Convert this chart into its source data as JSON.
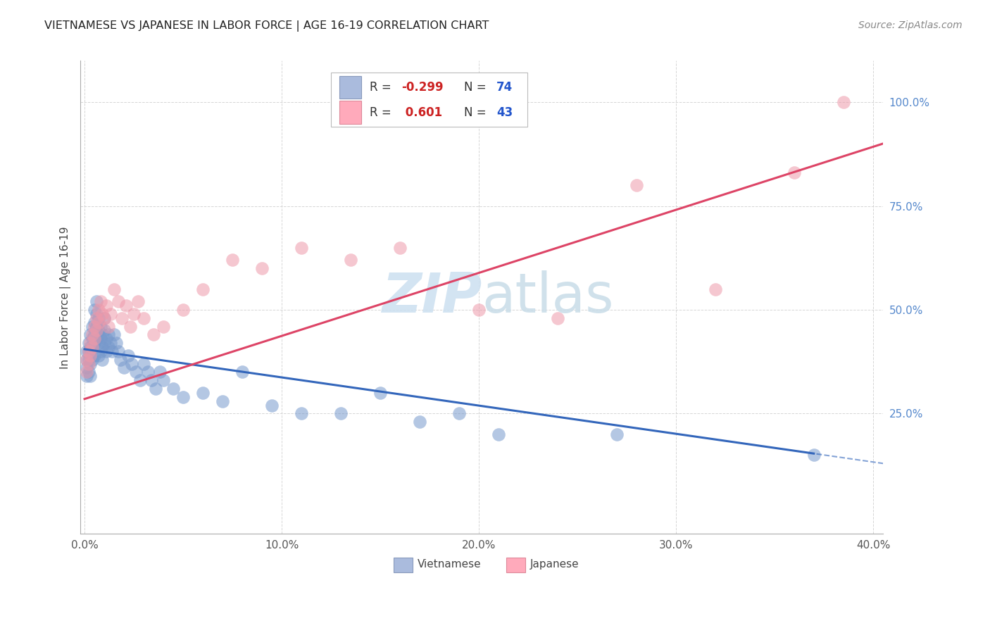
{
  "title": "VIETNAMESE VS JAPANESE IN LABOR FORCE | AGE 16-19 CORRELATION CHART",
  "source": "Source: ZipAtlas.com",
  "ylabel": "In Labor Force | Age 16-19",
  "xlim": [
    -0.002,
    0.405
  ],
  "ylim": [
    -0.04,
    1.1
  ],
  "xticks": [
    0.0,
    0.1,
    0.2,
    0.3,
    0.4
  ],
  "yticks_right": [
    0.25,
    0.5,
    0.75,
    1.0
  ],
  "background_color": "#ffffff",
  "grid_color": "#cccccc",
  "blue_dot_color": "#7799cc",
  "pink_dot_color": "#ee99aa",
  "blue_line_color": "#3366bb",
  "pink_line_color": "#dd4466",
  "watermark": "ZIPatlas",
  "watermark_color": "#ddeeff",
  "viet_x": [
    0.001,
    0.001,
    0.001,
    0.001,
    0.002,
    0.002,
    0.002,
    0.002,
    0.003,
    0.003,
    0.003,
    0.003,
    0.003,
    0.004,
    0.004,
    0.004,
    0.004,
    0.005,
    0.005,
    0.005,
    0.005,
    0.005,
    0.006,
    0.006,
    0.006,
    0.006,
    0.007,
    0.007,
    0.007,
    0.007,
    0.008,
    0.008,
    0.008,
    0.009,
    0.009,
    0.009,
    0.01,
    0.01,
    0.01,
    0.011,
    0.011,
    0.012,
    0.012,
    0.013,
    0.014,
    0.015,
    0.016,
    0.017,
    0.018,
    0.02,
    0.022,
    0.024,
    0.026,
    0.028,
    0.03,
    0.032,
    0.034,
    0.036,
    0.038,
    0.04,
    0.045,
    0.05,
    0.06,
    0.07,
    0.08,
    0.095,
    0.11,
    0.13,
    0.15,
    0.17,
    0.19,
    0.21,
    0.27,
    0.37
  ],
  "viet_y": [
    0.4,
    0.38,
    0.36,
    0.34,
    0.42,
    0.4,
    0.38,
    0.35,
    0.44,
    0.41,
    0.39,
    0.37,
    0.34,
    0.46,
    0.43,
    0.41,
    0.38,
    0.5,
    0.47,
    0.44,
    0.42,
    0.39,
    0.52,
    0.49,
    0.46,
    0.43,
    0.48,
    0.45,
    0.42,
    0.39,
    0.46,
    0.43,
    0.4,
    0.44,
    0.41,
    0.38,
    0.48,
    0.45,
    0.42,
    0.43,
    0.4,
    0.44,
    0.41,
    0.42,
    0.4,
    0.44,
    0.42,
    0.4,
    0.38,
    0.36,
    0.39,
    0.37,
    0.35,
    0.33,
    0.37,
    0.35,
    0.33,
    0.31,
    0.35,
    0.33,
    0.31,
    0.29,
    0.3,
    0.28,
    0.35,
    0.27,
    0.25,
    0.25,
    0.3,
    0.23,
    0.25,
    0.2,
    0.2,
    0.15
  ],
  "jap_x": [
    0.001,
    0.001,
    0.002,
    0.002,
    0.003,
    0.003,
    0.004,
    0.004,
    0.005,
    0.005,
    0.006,
    0.006,
    0.007,
    0.007,
    0.008,
    0.009,
    0.01,
    0.011,
    0.012,
    0.013,
    0.015,
    0.017,
    0.019,
    0.021,
    0.023,
    0.025,
    0.027,
    0.03,
    0.035,
    0.04,
    0.05,
    0.06,
    0.075,
    0.09,
    0.11,
    0.135,
    0.16,
    0.2,
    0.24,
    0.28,
    0.32,
    0.36,
    0.385
  ],
  "jap_y": [
    0.38,
    0.35,
    0.4,
    0.37,
    0.42,
    0.39,
    0.44,
    0.41,
    0.46,
    0.43,
    0.48,
    0.45,
    0.5,
    0.47,
    0.52,
    0.49,
    0.48,
    0.51,
    0.46,
    0.49,
    0.55,
    0.52,
    0.48,
    0.51,
    0.46,
    0.49,
    0.52,
    0.48,
    0.44,
    0.46,
    0.5,
    0.55,
    0.62,
    0.6,
    0.65,
    0.62,
    0.65,
    0.5,
    0.48,
    0.8,
    0.55,
    0.83,
    1.0
  ]
}
